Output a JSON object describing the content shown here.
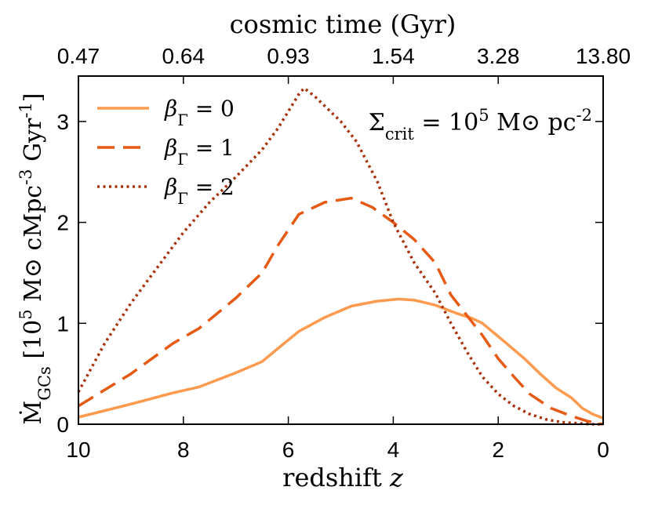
{
  "chart_data": {
    "type": "line",
    "title": "",
    "xlabel": "redshift z",
    "ylabel": "Ṁ_GCs [10^5 M⊙ cMpc^-3 Gyr^-1]",
    "top_axis_label": "cosmic time (Gyr)",
    "xlim": [
      10,
      0
    ],
    "ylim": [
      0,
      3.45
    ],
    "x_ticks": [
      "10",
      "8",
      "6",
      "4",
      "2",
      "0"
    ],
    "y_ticks": [
      "0",
      "1",
      "2",
      "3"
    ],
    "top_ticks": [
      "0.47",
      "0.64",
      "0.93",
      "1.54",
      "3.28",
      "13.80"
    ],
    "top_tick_redshifts": [
      10,
      8,
      6,
      4,
      2,
      0
    ],
    "annotation": "Σ_crit = 10^5 M⊙ pc^-2",
    "legend": [
      "β_Γ = 0",
      "β_Γ = 1",
      "β_Γ = 2"
    ],
    "series": [
      {
        "name": "β_Γ = 0",
        "color": "#fd9a4d",
        "style": "solid",
        "x": [
          10,
          9,
          8.2,
          7.7,
          7,
          6.5,
          6.2,
          5.8,
          5.3,
          4.8,
          4.3,
          3.9,
          3.6,
          3.2,
          2.8,
          2.5,
          2.3,
          2.0,
          1.5,
          1.2,
          0.9,
          0.6,
          0.4,
          0.2,
          0
        ],
        "y": [
          0.07,
          0.2,
          0.31,
          0.37,
          0.51,
          0.62,
          0.75,
          0.92,
          1.06,
          1.17,
          1.22,
          1.24,
          1.23,
          1.18,
          1.1,
          1.05,
          1.0,
          0.87,
          0.65,
          0.5,
          0.36,
          0.26,
          0.16,
          0.1,
          0.06
        ]
      },
      {
        "name": "β_Γ = 1",
        "color": "#e65a14",
        "style": "dashed",
        "x": [
          10,
          9,
          8.2,
          7.7,
          7,
          6.5,
          6.2,
          5.8,
          5.3,
          4.8,
          4.4,
          4.0,
          3.6,
          3.2,
          2.9,
          2.6,
          2.3,
          2.0,
          1.7,
          1.4,
          1.0,
          0.6,
          0.3,
          0
        ],
        "y": [
          0.18,
          0.5,
          0.8,
          0.95,
          1.25,
          1.5,
          1.77,
          2.08,
          2.2,
          2.24,
          2.15,
          2.0,
          1.83,
          1.6,
          1.28,
          1.08,
          0.88,
          0.65,
          0.47,
          0.3,
          0.16,
          0.08,
          0.03,
          0.0
        ]
      },
      {
        "name": "β_Γ = 2",
        "color": "#a8330a",
        "style": "dotted",
        "x": [
          10,
          9.5,
          9,
          8.5,
          8,
          7.5,
          7,
          6.5,
          6.2,
          6.0,
          5.8,
          5.7,
          5.5,
          5.0,
          4.7,
          4.3,
          4.0,
          3.6,
          3.2,
          2.9,
          2.6,
          2.3,
          2.0,
          1.7,
          1.4,
          1.1,
          0.8,
          0.5,
          0.2,
          0
        ],
        "y": [
          0.32,
          0.8,
          1.2,
          1.55,
          1.9,
          2.2,
          2.45,
          2.72,
          2.93,
          3.1,
          3.27,
          3.33,
          3.25,
          3.0,
          2.8,
          2.4,
          2.0,
          1.6,
          1.3,
          1.0,
          0.72,
          0.47,
          0.3,
          0.18,
          0.1,
          0.05,
          0.02,
          0.01,
          0.0,
          0.0
        ]
      }
    ]
  }
}
